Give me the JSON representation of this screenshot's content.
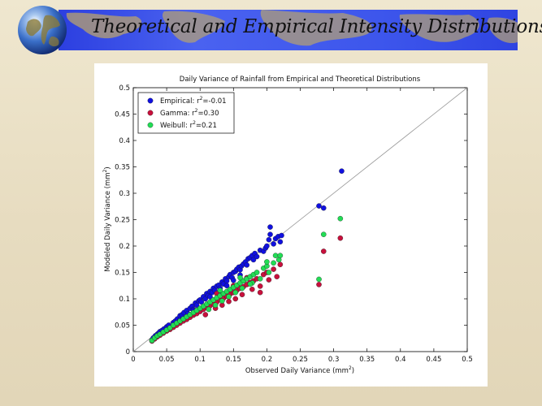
{
  "slide": {
    "title": "Theoretical and Empirical Intensity Distributions",
    "colors": {
      "banner": "#3b50ea",
      "background": "#e9dfc4",
      "title_text": "#111111"
    }
  },
  "chart_data": {
    "type": "scatter",
    "title": "Daily Variance of Rainfall from Empirical and Theoretical Distributions",
    "xlabel": "Observed Daily Variance (mm",
    "xlabel_sup": "2",
    "xlabel_close": ")",
    "ylabel": "Modeled Daily Variance (mm",
    "ylabel_sup": "2",
    "ylabel_close": ")",
    "xlim": [
      0,
      0.5
    ],
    "ylim": [
      0,
      0.5
    ],
    "xticks": [
      0,
      0.05,
      0.1,
      0.15,
      0.2,
      0.25,
      0.3,
      0.35,
      0.4,
      0.45,
      0.5
    ],
    "xtick_labels": [
      "0",
      "0.05",
      "0.1",
      "0.15",
      "0.2",
      "0.25",
      "0.3",
      "0.35",
      "0.4",
      "0.45",
      "0.5"
    ],
    "yticks": [
      0,
      0.05,
      0.1,
      0.15,
      0.2,
      0.25,
      0.3,
      0.35,
      0.4,
      0.45,
      0.5
    ],
    "ytick_labels": [
      "0",
      "0.05",
      "0.1",
      "0.15",
      "0.2",
      "0.25",
      "0.3",
      "0.35",
      "0.4",
      "0.45",
      "0.5"
    ],
    "reference_line": {
      "from": [
        0,
        0
      ],
      "to": [
        0.5,
        0.5
      ],
      "color": "#999999"
    },
    "legend_position": "top-left",
    "series": [
      {
        "name": "Empirical",
        "legend_prefix": "Empirical: r",
        "legend_sup": "2",
        "legend_suffix": "=-0.01",
        "color": "#1010e0",
        "points": [
          [
            0.028,
            0.022
          ],
          [
            0.03,
            0.026
          ],
          [
            0.033,
            0.03
          ],
          [
            0.036,
            0.033
          ],
          [
            0.038,
            0.035
          ],
          [
            0.04,
            0.038
          ],
          [
            0.043,
            0.04
          ],
          [
            0.046,
            0.043
          ],
          [
            0.05,
            0.047
          ],
          [
            0.053,
            0.05
          ],
          [
            0.055,
            0.045
          ],
          [
            0.06,
            0.055
          ],
          [
            0.063,
            0.058
          ],
          [
            0.066,
            0.062
          ],
          [
            0.07,
            0.068
          ],
          [
            0.073,
            0.07
          ],
          [
            0.076,
            0.074
          ],
          [
            0.08,
            0.078
          ],
          [
            0.082,
            0.072
          ],
          [
            0.085,
            0.082
          ],
          [
            0.088,
            0.086
          ],
          [
            0.09,
            0.08
          ],
          [
            0.093,
            0.092
          ],
          [
            0.095,
            0.088
          ],
          [
            0.098,
            0.096
          ],
          [
            0.1,
            0.098
          ],
          [
            0.102,
            0.094
          ],
          [
            0.105,
            0.104
          ],
          [
            0.108,
            0.1
          ],
          [
            0.11,
            0.11
          ],
          [
            0.112,
            0.106
          ],
          [
            0.115,
            0.114
          ],
          [
            0.118,
            0.112
          ],
          [
            0.12,
            0.12
          ],
          [
            0.122,
            0.116
          ],
          [
            0.125,
            0.124
          ],
          [
            0.128,
            0.126
          ],
          [
            0.13,
            0.12
          ],
          [
            0.133,
            0.132
          ],
          [
            0.135,
            0.128
          ],
          [
            0.138,
            0.138
          ],
          [
            0.14,
            0.134
          ],
          [
            0.143,
            0.142
          ],
          [
            0.145,
            0.146
          ],
          [
            0.148,
            0.14
          ],
          [
            0.15,
            0.15
          ],
          [
            0.153,
            0.152
          ],
          [
            0.155,
            0.156
          ],
          [
            0.158,
            0.16
          ],
          [
            0.16,
            0.155
          ],
          [
            0.162,
            0.162
          ],
          [
            0.165,
            0.166
          ],
          [
            0.168,
            0.17
          ],
          [
            0.17,
            0.164
          ],
          [
            0.172,
            0.176
          ],
          [
            0.175,
            0.178
          ],
          [
            0.178,
            0.182
          ],
          [
            0.18,
            0.174
          ],
          [
            0.182,
            0.186
          ],
          [
            0.185,
            0.18
          ],
          [
            0.19,
            0.192
          ],
          [
            0.195,
            0.19
          ],
          [
            0.198,
            0.196
          ],
          [
            0.2,
            0.2
          ],
          [
            0.203,
            0.212
          ],
          [
            0.205,
            0.236
          ],
          [
            0.205,
            0.222
          ],
          [
            0.21,
            0.204
          ],
          [
            0.213,
            0.214
          ],
          [
            0.217,
            0.218
          ],
          [
            0.22,
            0.208
          ],
          [
            0.222,
            0.22
          ],
          [
            0.278,
            0.276
          ],
          [
            0.285,
            0.272
          ],
          [
            0.312,
            0.342
          ],
          [
            0.07,
            0.06
          ],
          [
            0.09,
            0.078
          ],
          [
            0.115,
            0.104
          ],
          [
            0.128,
            0.11
          ],
          [
            0.14,
            0.125
          ],
          [
            0.15,
            0.135
          ],
          [
            0.16,
            0.145
          ]
        ]
      },
      {
        "name": "Gamma",
        "legend_prefix": "Gamma: r",
        "legend_sup": "2",
        "legend_suffix": "=0.30",
        "color": "#c8103c",
        "points": [
          [
            0.028,
            0.02
          ],
          [
            0.032,
            0.024
          ],
          [
            0.036,
            0.028
          ],
          [
            0.04,
            0.031
          ],
          [
            0.045,
            0.035
          ],
          [
            0.05,
            0.039
          ],
          [
            0.055,
            0.042
          ],
          [
            0.06,
            0.046
          ],
          [
            0.065,
            0.05
          ],
          [
            0.07,
            0.054
          ],
          [
            0.075,
            0.058
          ],
          [
            0.08,
            0.061
          ],
          [
            0.085,
            0.065
          ],
          [
            0.09,
            0.069
          ],
          [
            0.095,
            0.072
          ],
          [
            0.1,
            0.076
          ],
          [
            0.105,
            0.08
          ],
          [
            0.108,
            0.07
          ],
          [
            0.11,
            0.084
          ],
          [
            0.115,
            0.087
          ],
          [
            0.12,
            0.09
          ],
          [
            0.123,
            0.082
          ],
          [
            0.125,
            0.094
          ],
          [
            0.13,
            0.098
          ],
          [
            0.133,
            0.088
          ],
          [
            0.135,
            0.101
          ],
          [
            0.14,
            0.105
          ],
          [
            0.143,
            0.095
          ],
          [
            0.145,
            0.109
          ],
          [
            0.15,
            0.112
          ],
          [
            0.153,
            0.1
          ],
          [
            0.155,
            0.116
          ],
          [
            0.16,
            0.12
          ],
          [
            0.163,
            0.108
          ],
          [
            0.165,
            0.123
          ],
          [
            0.17,
            0.127
          ],
          [
            0.175,
            0.131
          ],
          [
            0.178,
            0.118
          ],
          [
            0.18,
            0.134
          ],
          [
            0.185,
            0.138
          ],
          [
            0.19,
            0.124
          ],
          [
            0.195,
            0.146
          ],
          [
            0.2,
            0.15
          ],
          [
            0.203,
            0.136
          ],
          [
            0.21,
            0.156
          ],
          [
            0.215,
            0.142
          ],
          [
            0.22,
            0.165
          ],
          [
            0.278,
            0.127
          ],
          [
            0.285,
            0.19
          ],
          [
            0.31,
            0.215
          ],
          [
            0.125,
            0.11
          ],
          [
            0.15,
            0.125
          ],
          [
            0.17,
            0.14
          ],
          [
            0.19,
            0.112
          ]
        ]
      },
      {
        "name": "Weibull",
        "legend_prefix": "Weibull: r",
        "legend_sup": "2",
        "legend_suffix": "=0.21",
        "color": "#22dd55",
        "points": [
          [
            0.028,
            0.021
          ],
          [
            0.032,
            0.026
          ],
          [
            0.036,
            0.03
          ],
          [
            0.04,
            0.033
          ],
          [
            0.045,
            0.037
          ],
          [
            0.05,
            0.041
          ],
          [
            0.055,
            0.045
          ],
          [
            0.06,
            0.05
          ],
          [
            0.065,
            0.054
          ],
          [
            0.07,
            0.058
          ],
          [
            0.075,
            0.062
          ],
          [
            0.08,
            0.066
          ],
          [
            0.085,
            0.07
          ],
          [
            0.09,
            0.074
          ],
          [
            0.095,
            0.078
          ],
          [
            0.1,
            0.082
          ],
          [
            0.105,
            0.086
          ],
          [
            0.11,
            0.09
          ],
          [
            0.113,
            0.08
          ],
          [
            0.115,
            0.094
          ],
          [
            0.12,
            0.098
          ],
          [
            0.123,
            0.088
          ],
          [
            0.125,
            0.102
          ],
          [
            0.13,
            0.106
          ],
          [
            0.133,
            0.096
          ],
          [
            0.135,
            0.11
          ],
          [
            0.14,
            0.114
          ],
          [
            0.143,
            0.104
          ],
          [
            0.145,
            0.118
          ],
          [
            0.15,
            0.122
          ],
          [
            0.153,
            0.112
          ],
          [
            0.155,
            0.126
          ],
          [
            0.16,
            0.13
          ],
          [
            0.163,
            0.12
          ],
          [
            0.165,
            0.134
          ],
          [
            0.17,
            0.138
          ],
          [
            0.175,
            0.142
          ],
          [
            0.178,
            0.13
          ],
          [
            0.18,
            0.146
          ],
          [
            0.185,
            0.15
          ],
          [
            0.19,
            0.138
          ],
          [
            0.195,
            0.158
          ],
          [
            0.2,
            0.162
          ],
          [
            0.203,
            0.15
          ],
          [
            0.21,
            0.168
          ],
          [
            0.213,
            0.182
          ],
          [
            0.218,
            0.174
          ],
          [
            0.22,
            0.182
          ],
          [
            0.278,
            0.137
          ],
          [
            0.285,
            0.222
          ],
          [
            0.31,
            0.252
          ],
          [
            0.13,
            0.116
          ],
          [
            0.16,
            0.14
          ],
          [
            0.175,
            0.128
          ],
          [
            0.2,
            0.17
          ]
        ]
      }
    ]
  }
}
